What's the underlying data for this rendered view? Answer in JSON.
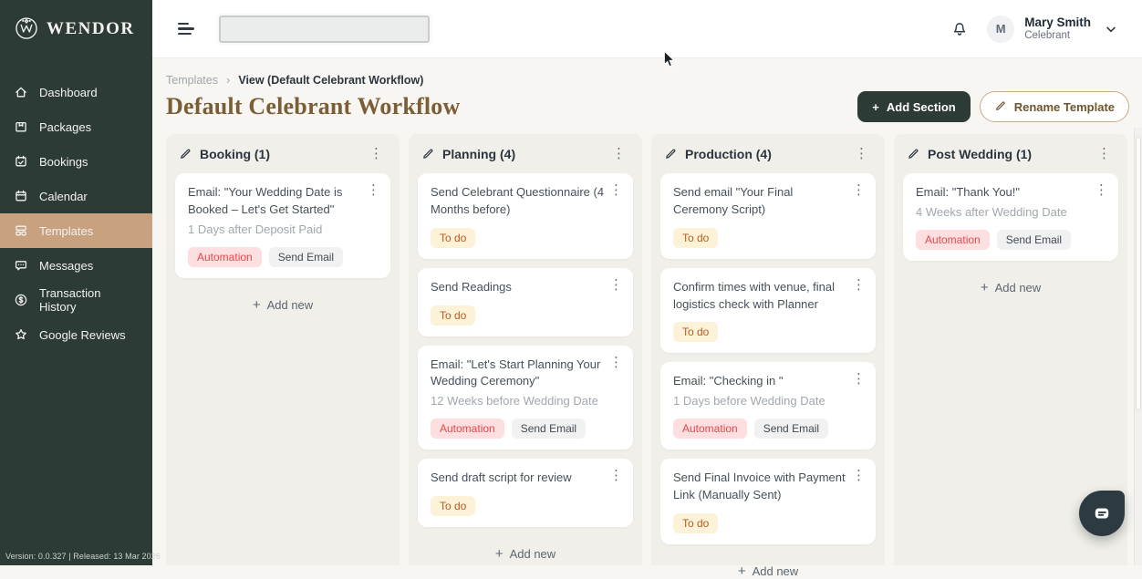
{
  "colors": {
    "sidebar_bg": "#2d3b36",
    "active_item_bg": "#c8a17e",
    "title_brown": "#7b5d36",
    "content_bg": "#f7f6f2",
    "column_bg": "#f0efe9",
    "dark_button_bg": "#2d3b36",
    "automation_text": "#e5484d",
    "automation_bg": "#fcdfde",
    "todo_text": "#b95b22",
    "todo_bg": "#fbf2d7",
    "sendemail_text": "#414b54",
    "sendemail_bg": "#f1f1f2",
    "chat_bubble_bg": "#2e3a41"
  },
  "glyphs": {
    "plus": "+",
    "kebab": "⋮",
    "breadcrumb_separator": "›"
  },
  "brand": {
    "name": "WENDOR"
  },
  "sidebar": {
    "items": [
      {
        "label": "Dashboard",
        "icon": "home-icon",
        "active": false
      },
      {
        "label": "Packages",
        "icon": "package-icon",
        "active": false
      },
      {
        "label": "Bookings",
        "icon": "calendar-check-icon",
        "active": false
      },
      {
        "label": "Calendar",
        "icon": "calendar-icon",
        "active": false
      },
      {
        "label": "Templates",
        "icon": "templates-icon",
        "active": true
      },
      {
        "label": "Messages",
        "icon": "chat-icon",
        "active": false
      },
      {
        "label": "Transaction History",
        "icon": "dollar-circle-icon",
        "active": false
      },
      {
        "label": "Google Reviews",
        "icon": "star-icon",
        "active": false
      }
    ],
    "footer": "Version: 0.0.327   |   Released: 13 Mar 2026"
  },
  "topbar": {
    "search": {
      "value": "",
      "placeholder": ""
    },
    "user": {
      "initial": "M",
      "name": "Mary Smith",
      "role": "Celebrant"
    }
  },
  "page_header": {
    "breadcrumb": [
      {
        "label": "Templates"
      },
      {
        "label": "View (Default Celebrant Workflow)"
      }
    ],
    "title": "Default Celebrant Workflow",
    "buttons": {
      "add_section": "Add Section",
      "rename_template": "Rename Template"
    }
  },
  "board": {
    "add_new_label": "Add new",
    "tag_styles": {
      "Automation": "automation",
      "Send Email": "send-email",
      "To do": "todo"
    },
    "columns": [
      {
        "title": "Booking (1)",
        "cards": [
          {
            "title": "Email: \"Your Wedding Date is Booked – Let's Get Started\"",
            "subtitle": "1 Days after Deposit Paid",
            "tags": [
              "Automation",
              "Send Email"
            ]
          }
        ]
      },
      {
        "title": "Planning (4)",
        "cards": [
          {
            "title": "Send Celebrant Questionnaire (4 Months before)",
            "tags": [
              "To do"
            ]
          },
          {
            "title": "Send Readings",
            "tags": [
              "To do"
            ]
          },
          {
            "title": "Email: \"Let's Start Planning Your Wedding Ceremony\"",
            "subtitle": "12 Weeks before Wedding Date",
            "tags": [
              "Automation",
              "Send Email"
            ]
          },
          {
            "title": "Send draft script for review",
            "tags": [
              "To do"
            ]
          }
        ]
      },
      {
        "title": "Production (4)",
        "cards": [
          {
            "title": "Send email \"Your Final Ceremony Script)",
            "tags": [
              "To do"
            ]
          },
          {
            "title": "Confirm times with venue, final logistics check with Planner",
            "tags": [
              "To do"
            ]
          },
          {
            "title": "Email: \"Checking in \"",
            "subtitle": "1 Days before Wedding Date",
            "tags": [
              "Automation",
              "Send Email"
            ]
          },
          {
            "title": "Send Final Invoice with Payment Link (Manually Sent)",
            "tags": [
              "To do"
            ]
          }
        ]
      },
      {
        "title": "Post Wedding (1)",
        "cards": [
          {
            "title": "Email: \"Thank You!\"",
            "subtitle": "4 Weeks after Wedding Date",
            "tags": [
              "Automation",
              "Send Email"
            ]
          }
        ]
      }
    ]
  }
}
